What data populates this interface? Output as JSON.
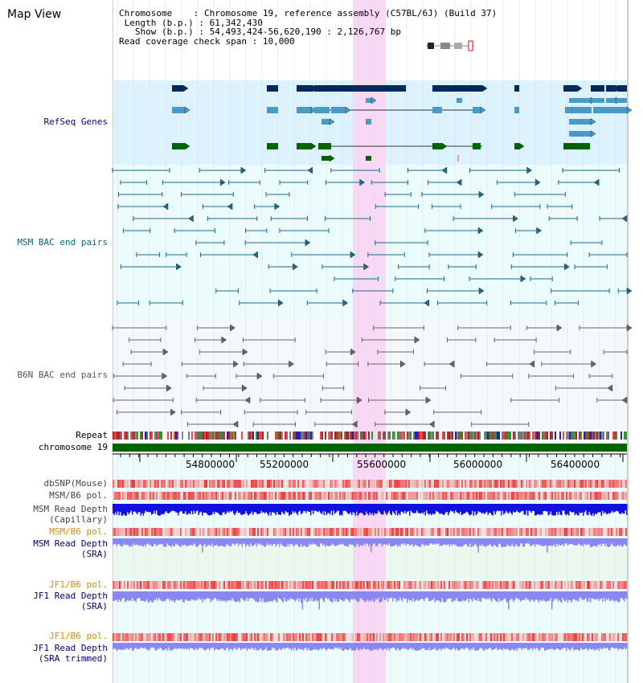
{
  "page_title": "Map View",
  "info": {
    "chromosome_key": "Chromosome",
    "chromosome_val": "Chromosome 19, reference assembly (C57BL/6J) (Build 37)",
    "length_key": "Length (b.p.)",
    "length_val": "61,342,430",
    "show_key": "Show (b.p.)",
    "show_val": "54,493,424-56,620,190 : 2,126,767 bp",
    "coverage_key": "Read coverage check span",
    "coverage_val": "10,000"
  },
  "tracks": {
    "refseq": "RefSeq Genes",
    "msm_bac": "MSM BAC end pairs",
    "b6n_bac": "B6N BAC end pairs",
    "repeat": "Repeat",
    "chromosome": "chromosome 19",
    "dbsnp": "dbSNP(Mouse)",
    "msm_b6_pol_1": "MSM/B6 pol.",
    "msm_depth_cap_1": "MSM Read Depth",
    "msm_depth_cap_2": "(Capillary)",
    "msm_b6_pol_2": "MSM/B6 pol.",
    "msm_depth_sra_1": "MSM Read Depth",
    "msm_depth_sra_2": "(SRA)",
    "jf1_b6_pol_1": "JF1/B6 pol.",
    "jf1_depth_sra_1": "JF1 Read Depth",
    "jf1_depth_sra_2": "(SRA)",
    "jf1_b6_pol_2": "JF1/B6 pol.",
    "jf1_depth_trim_1": "JF1 Read Depth",
    "jf1_depth_trim_2": "(SRA trimmed)"
  },
  "axis_ticks": [
    "54800000",
    "55200000",
    "55600000",
    "56000000",
    "56400000"
  ],
  "colors": {
    "refseq_bg": "#dcf2fc",
    "bac_bg": "#ecfcfc",
    "b6n_bg": "#f6f9fb",
    "highlight": "#f8d8f4",
    "label_blue": "#000080",
    "label_teal": "#006a7a",
    "label_orange": "#e08a00",
    "gene_dark": "#002a5c",
    "gene_mid": "#4a9ac8",
    "gene_green": "#006400",
    "chrom_green": "#006400",
    "depth_blue": "#0000ee",
    "depth_light": "#8888f0"
  }
}
